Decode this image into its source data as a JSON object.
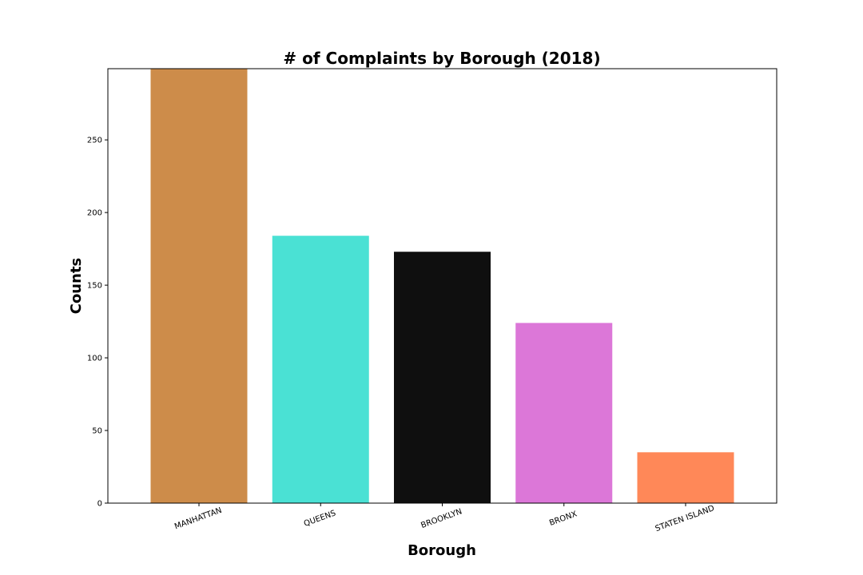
{
  "chart_data": {
    "type": "bar",
    "title": "# of Complaints by Borough (2018)",
    "xlabel": "Borough",
    "ylabel": "Counts",
    "categories": [
      "MANHATTAN",
      "QUEENS",
      "BROOKLYN",
      "BRONX",
      "STATEN ISLAND"
    ],
    "values": [
      299,
      184,
      173,
      124,
      35
    ],
    "colors": [
      "#CD8C4A",
      "#4AE1D4",
      "#0F0F0F",
      "#DC77D8",
      "#FF8858"
    ],
    "ylim": [
      0,
      299
    ],
    "yticks": [
      0,
      50,
      100,
      150,
      200,
      250
    ],
    "grid": false,
    "legend": "none",
    "xtick_rotation": -20
  }
}
